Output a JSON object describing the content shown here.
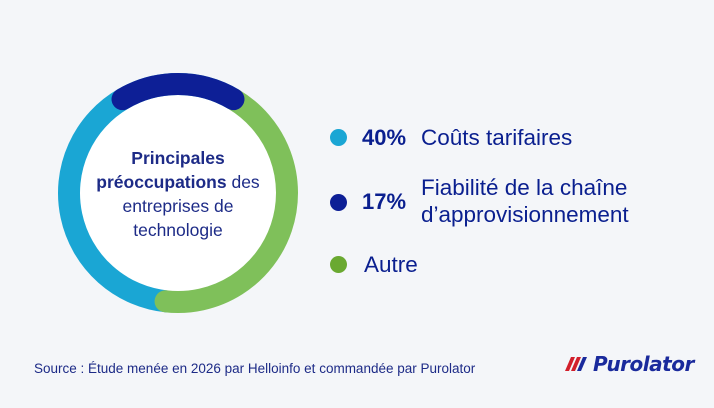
{
  "chart_data": {
    "type": "pie",
    "categories": [
      "Coûts tarifaires",
      "Fiabilité de la chaîne d’approvisionnement",
      "Autre"
    ],
    "values": [
      40,
      17,
      43
    ],
    "colors": [
      "#1aa6d4",
      "#0d1f96",
      "#7fc05a"
    ],
    "donut": true,
    "title": ""
  },
  "center": {
    "bold_line1": "Principales",
    "bold_line2": "préoccupations",
    "rest_line2": " des",
    "line3": "entreprises de",
    "line4": "technologie"
  },
  "legend": [
    {
      "pct": "40%",
      "label_line1": "Coûts tarifaires",
      "label_line2": "",
      "color": "#1aa6d4"
    },
    {
      "pct": "17%",
      "label_line1": "Fiabilité de la chaîne",
      "label_line2": "d’approvisionnement",
      "color": "#0d1f96"
    },
    {
      "pct": "",
      "label_line1": "Autre",
      "label_line2": "",
      "color": "#6aa931"
    }
  ],
  "source": "Source : Étude menée en 2026 par Helloinfo et commandée par Purolator",
  "logo": {
    "text": "Purolator",
    "icon": "purolator-stripes-icon"
  }
}
